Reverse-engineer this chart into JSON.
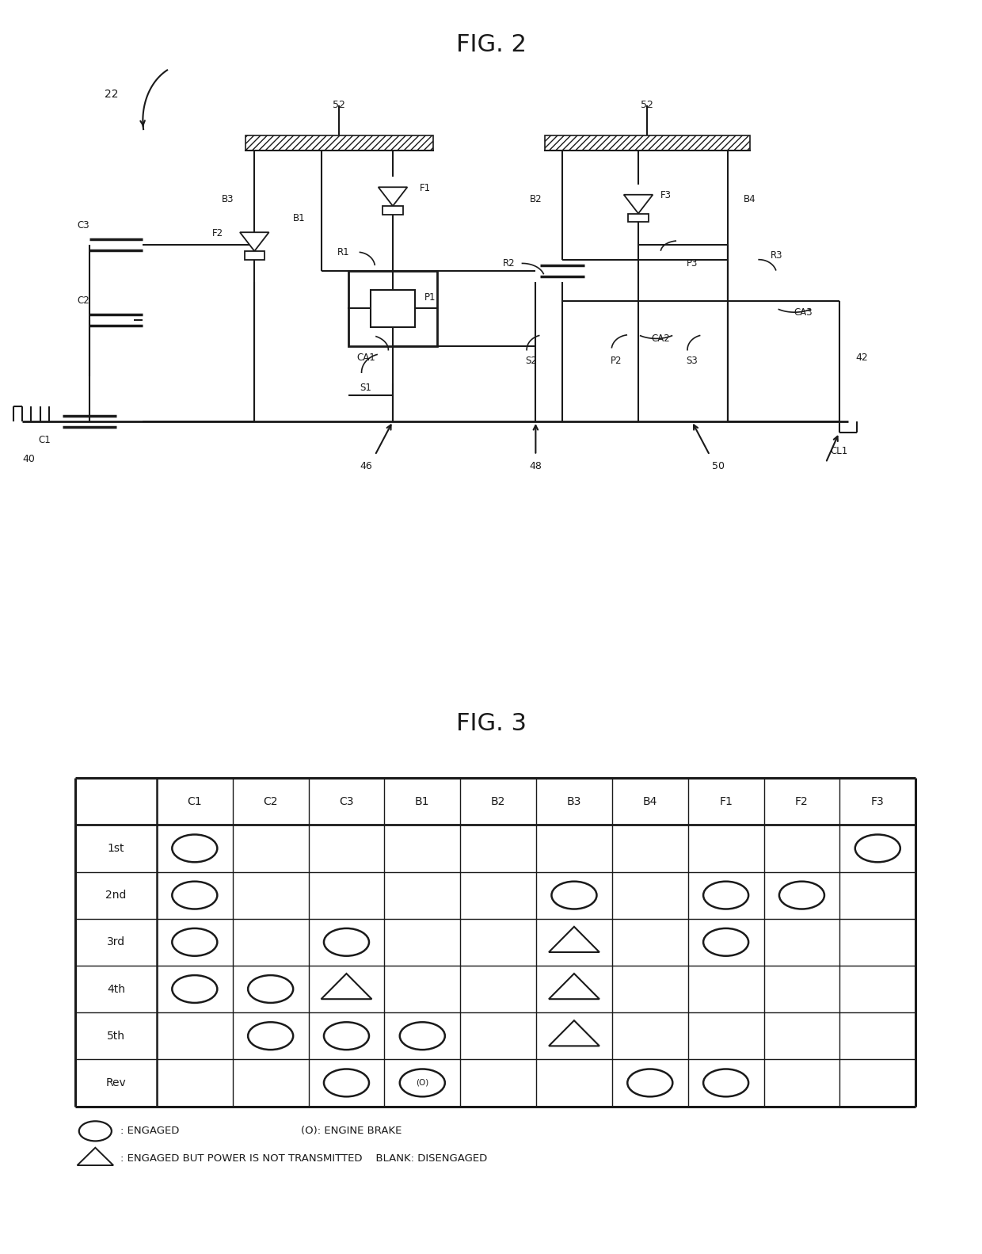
{
  "fig2_title": "FIG. 2",
  "fig3_title": "FIG. 3",
  "table_headers": [
    "",
    "C1",
    "C2",
    "C3",
    "B1",
    "B2",
    "B3",
    "B4",
    "F1",
    "F2",
    "F3"
  ],
  "table_rows": [
    [
      "1st",
      "O",
      "",
      "",
      "",
      "",
      "",
      "",
      "",
      "",
      "O"
    ],
    [
      "2nd",
      "O",
      "",
      "",
      "",
      "",
      "O",
      "",
      "O",
      "O",
      ""
    ],
    [
      "3rd",
      "O",
      "",
      "O",
      "",
      "",
      "T",
      "",
      "O",
      "",
      ""
    ],
    [
      "4th",
      "O",
      "O",
      "T",
      "",
      "",
      "T",
      "",
      "",
      "",
      ""
    ],
    [
      "5th",
      "",
      "O",
      "O",
      "O",
      "",
      "T",
      "",
      "",
      "",
      ""
    ],
    [
      "Rev",
      "",
      "",
      "O",
      "(O)",
      "",
      "",
      "O",
      "O",
      "",
      ""
    ]
  ],
  "bg_color": "#ffffff",
  "line_color": "#1a1a1a",
  "font_color": "#1a1a1a"
}
